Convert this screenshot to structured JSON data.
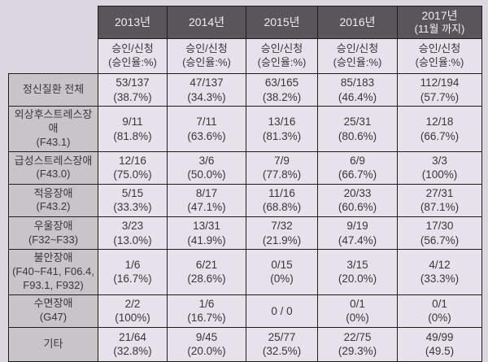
{
  "chart_data": {
    "type": "table",
    "title": "",
    "corner_label": "",
    "columns": [
      {
        "label": "2013년",
        "sub": ""
      },
      {
        "label": "2014년",
        "sub": ""
      },
      {
        "label": "2015년",
        "sub": ""
      },
      {
        "label": "2016년",
        "sub": ""
      },
      {
        "label": "2017년",
        "sub": "(11월 까지)"
      }
    ],
    "subheader_line1": "승인/신청",
    "subheader_line2": "(승인율:%)",
    "rows": [
      {
        "label": [
          "정신질환 전체"
        ],
        "cells": [
          [
            "53/137",
            "(38.7%)"
          ],
          [
            "47/137",
            "(34.3%)"
          ],
          [
            "63/165",
            "(38.2%)"
          ],
          [
            "85/183",
            "(46.4%)"
          ],
          [
            "112/194",
            "(57.7%)"
          ]
        ]
      },
      {
        "label": [
          "외상후스트레스장애",
          "(F43.1)"
        ],
        "cells": [
          [
            "9/11",
            "(81.8%)"
          ],
          [
            "7/11",
            "(63.6%)"
          ],
          [
            "13/16",
            "(81.3%)"
          ],
          [
            "25/31",
            "(80.6%)"
          ],
          [
            "12/18",
            "(66.7%)"
          ]
        ]
      },
      {
        "label": [
          "급성스트레스장애",
          "(F43.0)"
        ],
        "cells": [
          [
            "12/16",
            "(75.0%)"
          ],
          [
            "3/6",
            "(50.0%)"
          ],
          [
            "7/9",
            "(77.8%)"
          ],
          [
            "6/9",
            "(66.7%)"
          ],
          [
            "3/3",
            "(100%)"
          ]
        ]
      },
      {
        "label": [
          "적응장애",
          "(F43.2)"
        ],
        "cells": [
          [
            "5/15",
            "(33.3%)"
          ],
          [
            "8/17",
            "(47.1%)"
          ],
          [
            "11/16",
            "(68.8%)"
          ],
          [
            "20/33",
            "(60.6%)"
          ],
          [
            "27/31",
            "(87.1%)"
          ]
        ]
      },
      {
        "label": [
          "우울장애",
          "(F32~F33)"
        ],
        "cells": [
          [
            "3/23",
            "(13.0%)"
          ],
          [
            "13/31",
            "(41.9%)"
          ],
          [
            "7/32",
            "(21.9%)"
          ],
          [
            "9/19",
            "(47.4%)"
          ],
          [
            "17/30",
            "(56.7%)"
          ]
        ]
      },
      {
        "label": [
          "불안장애",
          "(F40~F41, F06.4,",
          "F93.1, F932)"
        ],
        "cells": [
          [
            "1/6",
            "(16.7%)"
          ],
          [
            "6/21",
            "(28.6%)"
          ],
          [
            "0/15",
            "(0%)"
          ],
          [
            "3/15",
            "(20.0%)"
          ],
          [
            "4/12",
            "(33.3%)"
          ]
        ]
      },
      {
        "label": [
          "수면장애",
          "(G47)"
        ],
        "cells": [
          [
            "2/2",
            "(100%)"
          ],
          [
            "1/6",
            "(16.7%)"
          ],
          [
            "0 / 0"
          ],
          [
            "0/1",
            "(0%)"
          ],
          [
            "0/1",
            "(0%)"
          ]
        ]
      },
      {
        "label": [
          "기타"
        ],
        "cells": [
          [
            "21/64",
            "(32.8%)"
          ],
          [
            "9/45",
            "(20.0%)"
          ],
          [
            "25/77",
            "(32.5%)"
          ],
          [
            "22/75",
            "(29.3%)"
          ],
          [
            "49/99",
            "(49.5)"
          ]
        ]
      }
    ],
    "colors": {
      "page_background": "#ddd7e1",
      "header_background": "#59565a",
      "header_text": "#efedf0",
      "label_background": "#c7c5c8",
      "cell_background": "#e7e1eb",
      "border": "#1d1d1d",
      "text": "#39373a"
    }
  }
}
